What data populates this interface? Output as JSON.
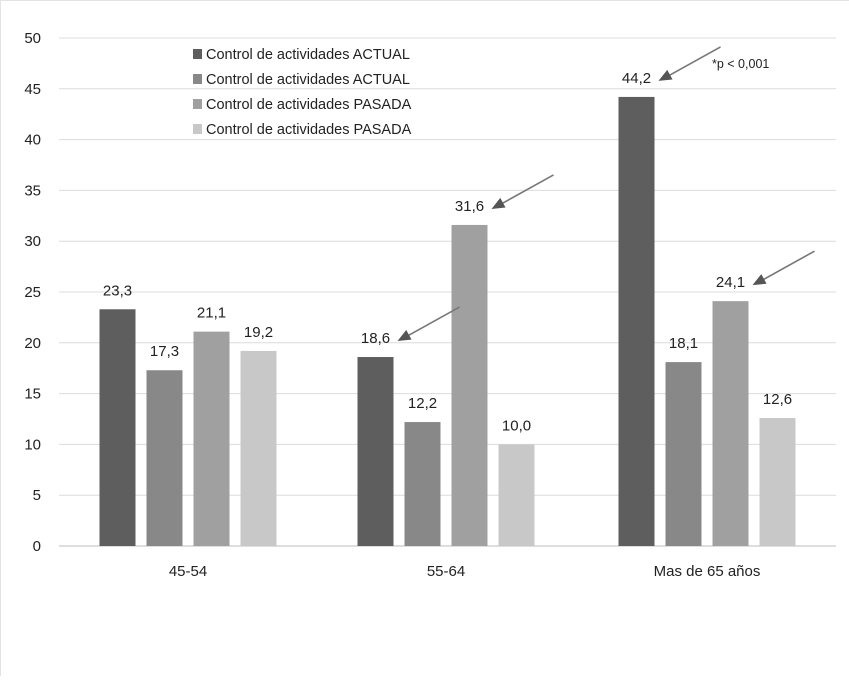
{
  "chart_data": {
    "type": "bar",
    "categories": [
      "45-54",
      "55-64",
      "Mas de 65 años"
    ],
    "series": [
      {
        "name": "Control de actividades ACTUAL",
        "values": [
          23.3,
          18.6,
          44.2
        ],
        "labels": [
          "23,3",
          "18,6",
          "44,2"
        ],
        "color": "#5e5e5e"
      },
      {
        "name": "Control de actividades ACTUAL",
        "values": [
          17.3,
          12.2,
          18.1
        ],
        "labels": [
          "17,3",
          "12,2",
          "18,1"
        ],
        "color": "#888888"
      },
      {
        "name": "Control de actividades PASADA",
        "values": [
          21.1,
          31.6,
          24.1
        ],
        "labels": [
          "21,1",
          "31,6",
          "24,1"
        ],
        "color": "#a0a0a0"
      },
      {
        "name": "Control de actividades PASADA",
        "values": [
          19.2,
          10.0,
          12.6
        ],
        "labels": [
          "19,2",
          "10,0",
          "12,6"
        ],
        "color": "#c8c8c8"
      }
    ],
    "ylim": [
      0,
      50
    ],
    "yticks": [
      0,
      5,
      10,
      15,
      20,
      25,
      30,
      35,
      40,
      45,
      50
    ],
    "grid": true,
    "legend_position": "top-left",
    "annotation": "*p < 0,001",
    "highlighted": [
      {
        "category": 1,
        "series": 0
      },
      {
        "category": 1,
        "series": 2
      },
      {
        "category": 2,
        "series": 0
      },
      {
        "category": 2,
        "series": 2
      }
    ]
  }
}
